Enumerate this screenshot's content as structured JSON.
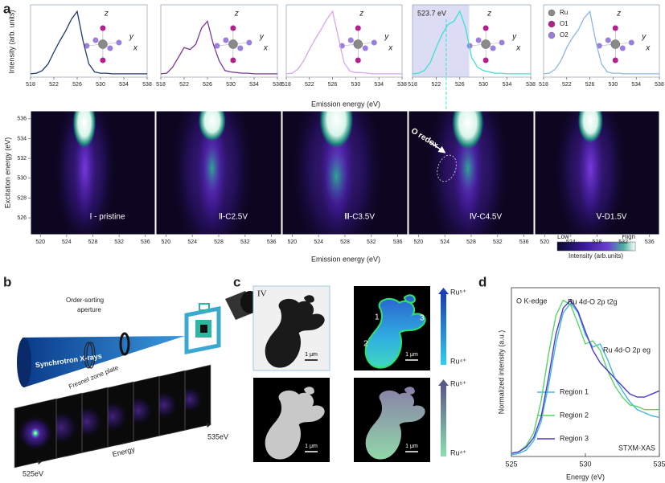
{
  "panel_a": {
    "label": "a",
    "spectra": {
      "type": "line",
      "x_label": "Emission energy (eV)",
      "y_label": "Intensity (arb. units)",
      "xlim": [
        518,
        538
      ],
      "xticks": [
        518,
        522,
        526,
        530,
        534,
        538
      ],
      "ylim": [
        0,
        1.1
      ],
      "x": [
        518,
        519,
        520,
        521,
        522,
        523,
        524,
        525,
        526,
        527,
        528,
        529,
        530,
        531,
        532,
        533,
        534,
        535,
        536,
        537,
        538
      ],
      "series": [
        {
          "color": "#1f3b6e",
          "values": [
            0.05,
            0.06,
            0.1,
            0.2,
            0.38,
            0.55,
            0.7,
            0.88,
            1.0,
            0.55,
            0.2,
            0.08,
            0.06,
            0.06,
            0.05,
            0.05,
            0.05,
            0.05,
            0.05,
            0.05,
            0.05
          ]
        },
        {
          "color": "#7b3a96",
          "values": [
            0.05,
            0.06,
            0.15,
            0.3,
            0.45,
            0.42,
            0.5,
            0.75,
            0.85,
            0.5,
            0.25,
            0.1,
            0.08,
            0.07,
            0.06,
            0.06,
            0.05,
            0.05,
            0.05,
            0.05,
            0.05
          ]
        },
        {
          "color": "#d7a6e6",
          "values": [
            0.05,
            0.06,
            0.12,
            0.25,
            0.42,
            0.58,
            0.72,
            0.88,
            1.0,
            0.6,
            0.22,
            0.09,
            0.07,
            0.07,
            0.06,
            0.05,
            0.05,
            0.05,
            0.05,
            0.05,
            0.05
          ]
        },
        {
          "color": "#3ee0d0",
          "values": [
            0.05,
            0.06,
            0.1,
            0.22,
            0.45,
            0.65,
            0.8,
            0.85,
            1.0,
            0.75,
            0.3,
            0.15,
            0.1,
            0.08,
            0.06,
            0.06,
            0.05,
            0.05,
            0.05,
            0.05,
            0.05
          ]
        },
        {
          "color": "#8fb6e0",
          "values": [
            0.05,
            0.06,
            0.12,
            0.25,
            0.45,
            0.6,
            0.72,
            0.9,
            1.0,
            0.55,
            0.2,
            0.08,
            0.06,
            0.06,
            0.05,
            0.05,
            0.05,
            0.05,
            0.05,
            0.05,
            0.05
          ]
        }
      ],
      "marker": {
        "value": 523.7,
        "label": "523.7 eV"
      },
      "structure_axes": [
        "z",
        "y",
        "x"
      ],
      "legend": [
        {
          "name": "Ru",
          "color": "#8a8a8a"
        },
        {
          "name": "O1",
          "color": "#b0208e"
        },
        {
          "name": "O2",
          "color": "#9b7fe0"
        }
      ]
    },
    "maps": {
      "x_label": "Emission energy (eV)",
      "y_label": "Excitation energy (eV)",
      "xlim": [
        518.5,
        537.5
      ],
      "xticks": [
        520,
        524,
        528,
        532,
        536
      ],
      "ylim": [
        524.3,
        536.8
      ],
      "yticks": [
        526,
        528,
        530,
        532,
        534,
        536
      ],
      "panels": [
        "Ⅰ - pristine",
        "Ⅱ-C2.5V",
        "Ⅲ-C3.5V",
        "Ⅳ-C4.5V",
        "Ⅴ-D1.5V"
      ],
      "annotation": "O redox",
      "colorbar": {
        "low": "Low",
        "high": "High",
        "label": "Intensity (arb.units)"
      }
    }
  },
  "panel_b": {
    "label": "b",
    "aperture": [
      "Order-sorting",
      "aperture"
    ],
    "xrays": "Synchrotron X-rays",
    "zone_plate": "Fresnel zone plate",
    "energy": "Energy",
    "energy_low": "525eV",
    "energy_high": "535eV"
  },
  "panel_c": {
    "label": "c",
    "stage": "IV",
    "scale_bar": "1 μm",
    "regions": [
      "1",
      "2",
      "3"
    ],
    "colorbar_top": "Ru⁵⁺",
    "colorbar_bottom": "Ru⁴⁺"
  },
  "panel_d": {
    "label": "d",
    "type": "line",
    "title": "O K-edge",
    "x_label": "Energy (eV)",
    "y_label": "Normalized intensity (a.u.)",
    "xlim": [
      525,
      535
    ],
    "xticks": [
      525,
      530,
      535
    ],
    "ylim": [
      0,
      1.08
    ],
    "x": [
      525,
      525.5,
      526,
      526.5,
      527,
      527.5,
      528,
      528.5,
      529,
      529.5,
      530,
      530.5,
      531,
      531.5,
      532,
      532.5,
      533,
      533.5,
      534,
      534.5,
      535
    ],
    "series": [
      {
        "name": "Region 1",
        "color": "#45b5e0",
        "values": [
          0.01,
          0.02,
          0.04,
          0.1,
          0.22,
          0.45,
          0.72,
          0.92,
          0.98,
          0.92,
          0.78,
          0.7,
          0.72,
          0.62,
          0.5,
          0.42,
          0.35,
          0.3,
          0.28,
          0.26,
          0.25
        ]
      },
      {
        "name": "Region 2",
        "color": "#5ad36a",
        "values": [
          0.02,
          0.03,
          0.07,
          0.15,
          0.35,
          0.65,
          0.9,
          1.0,
          0.97,
          0.85,
          0.72,
          0.74,
          0.68,
          0.55,
          0.45,
          0.38,
          0.33,
          0.32,
          0.3,
          0.3,
          0.3
        ]
      },
      {
        "name": "Region 3",
        "color": "#4a3ad0",
        "values": [
          0.02,
          0.03,
          0.06,
          0.12,
          0.25,
          0.5,
          0.78,
          0.95,
          1.0,
          0.93,
          0.8,
          0.68,
          0.6,
          0.55,
          0.5,
          0.45,
          0.4,
          0.38,
          0.38,
          0.4,
          0.42
        ]
      }
    ],
    "annotations": [
      "Ru 4d-O 2p t2g",
      "Ru 4d-O 2p eg"
    ],
    "method": "STXM-XAS"
  }
}
